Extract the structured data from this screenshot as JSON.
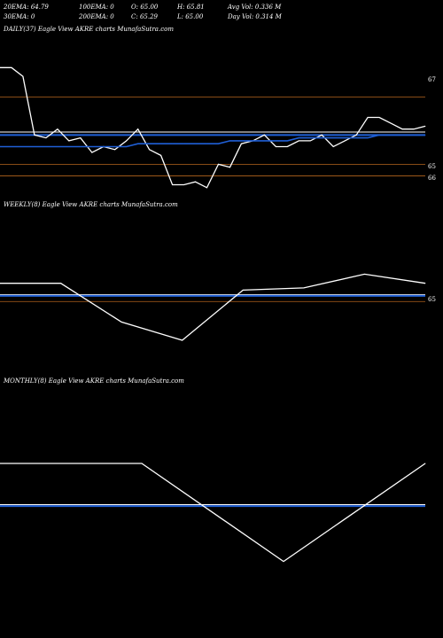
{
  "header": {
    "row1": [
      "20EMA: 64.79",
      "100EMA: 0",
      "O: 65.00",
      "H: 65.81",
      "Avg Vol: 0.336  M"
    ],
    "row2": [
      "30EMA: 0",
      "200EMA: 0",
      "C: 65.29",
      "L: 65.00",
      "Day Vol: 0.314  M"
    ]
  },
  "colors": {
    "background": "#000000",
    "price_line": "#ffffff",
    "ema_line": "#1f5fd6",
    "level_line": "#b5651d",
    "band_line": "#ffffff"
  },
  "chart_data": [
    {
      "type": "line",
      "title": "DAILY(37) Eagle  View  AKRE charts MunafaSutra.com",
      "y_ticks": [
        "67",
        "65",
        "66"
      ],
      "series": [
        {
          "values": [
            68.2,
            68.2,
            67.9,
            65.9,
            65.8,
            66.1,
            65.7,
            65.8,
            65.3,
            65.5,
            65.4,
            65.7,
            66.1,
            65.4,
            65.2,
            64.2,
            64.2,
            64.3,
            64.1,
            64.9,
            64.8,
            65.6,
            65.7,
            65.9,
            65.5,
            65.5,
            65.7,
            65.7,
            65.9,
            65.5,
            65.7,
            65.9,
            66.5,
            66.5,
            66.3,
            66.1,
            66.1,
            66.2
          ]
        },
        {
          "values": [
            65.5,
            65.5,
            65.5,
            65.5,
            65.5,
            65.5,
            65.5,
            65.5,
            65.5,
            65.5,
            65.5,
            65.5,
            65.6,
            65.6,
            65.6,
            65.6,
            65.6,
            65.6,
            65.6,
            65.6,
            65.7,
            65.7,
            65.7,
            65.7,
            65.7,
            65.7,
            65.8,
            65.8,
            65.8,
            65.8,
            65.8,
            65.8,
            65.8,
            65.9,
            65.9,
            65.9,
            65.9,
            65.9
          ]
        }
      ],
      "ylim": [
        63.7,
        69.3
      ],
      "levels": [
        67.2,
        66.0,
        64.9,
        64.5
      ],
      "bands": [
        66.0,
        65.9
      ]
    },
    {
      "type": "line",
      "title": "WEEKLY(8) Eagle  View  AKRE charts MunafaSutra.com",
      "y_ticks": [
        "65"
      ],
      "series": [
        {
          "values": [
            65.9,
            65.9,
            64.2,
            63.4,
            65.6,
            65.7,
            66.3,
            65.9
          ]
        }
      ],
      "ylim": [
        62.0,
        69.0
      ],
      "levels": [
        65.1
      ],
      "bands": [
        65.4,
        65.35
      ]
    },
    {
      "type": "line",
      "title": "MONTHLY(8) Eagle  View  AKRE charts MunafaSutra.com",
      "y_ticks": [],
      "series": [
        {
          "values": [
            65.8,
            65.8,
            65.8,
            64.8,
            63.8,
            64.8,
            65.8
          ]
        }
      ],
      "ylim": [
        62.6,
        67.3
      ],
      "levels": [],
      "bands": [
        64.96,
        64.93
      ]
    }
  ]
}
